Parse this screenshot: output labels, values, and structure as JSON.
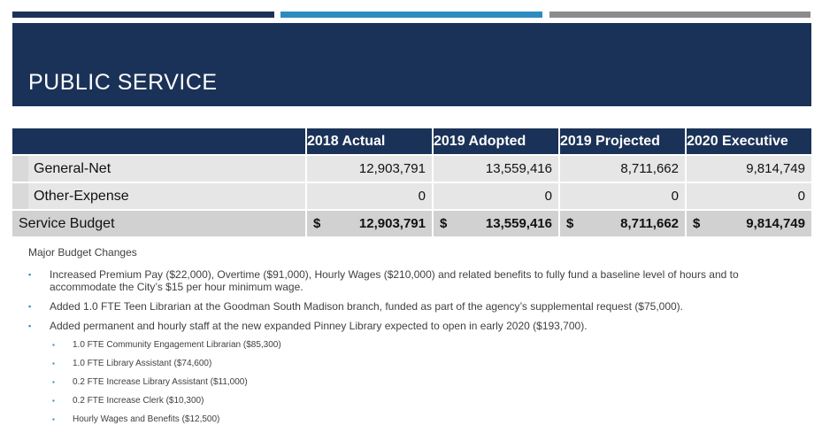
{
  "slide": {
    "title": "PUBLIC SERVICE"
  },
  "table": {
    "columns": [
      "2018 Actual",
      "2019 Adopted",
      "2019 Projected",
      "2020 Executive"
    ],
    "rows": [
      {
        "label": "General-Net",
        "values": [
          "12,903,791",
          "13,559,416",
          "8,711,662",
          "9,814,749"
        ]
      },
      {
        "label": "Other-Expense",
        "values": [
          "0",
          "0",
          "0",
          "0"
        ]
      }
    ],
    "total": {
      "label": "Service Budget",
      "currency": "$",
      "values": [
        "12,903,791",
        "13,559,416",
        "8,711,662",
        "9,814,749"
      ]
    }
  },
  "notes": {
    "title": "Major Budget Changes",
    "bullet": "▪",
    "items": [
      "Increased Premium Pay ($22,000), Overtime ($91,000), Hourly Wages ($210,000) and related benefits to fully fund a baseline level of hours and to accommodate the City’s $15 per hour minimum wage.",
      "Added 1.0 FTE Teen Librarian at the Goodman South Madison branch, funded as part of the agency’s supplemental request ($75,000).",
      "Added permanent and hourly staff at the new expanded Pinney Library expected to open in early 2020 ($193,700)."
    ],
    "subitems": [
      "1.0 FTE Community Engagement Librarian ($85,300)",
      "1.0 FTE Library Assistant ($74,600)",
      "0.2 FTE Increase Library Assistant ($11,000)",
      "0.2 FTE Increase Clerk ($10,300)",
      "Hourly Wages and Benefits ($12,500)"
    ]
  }
}
